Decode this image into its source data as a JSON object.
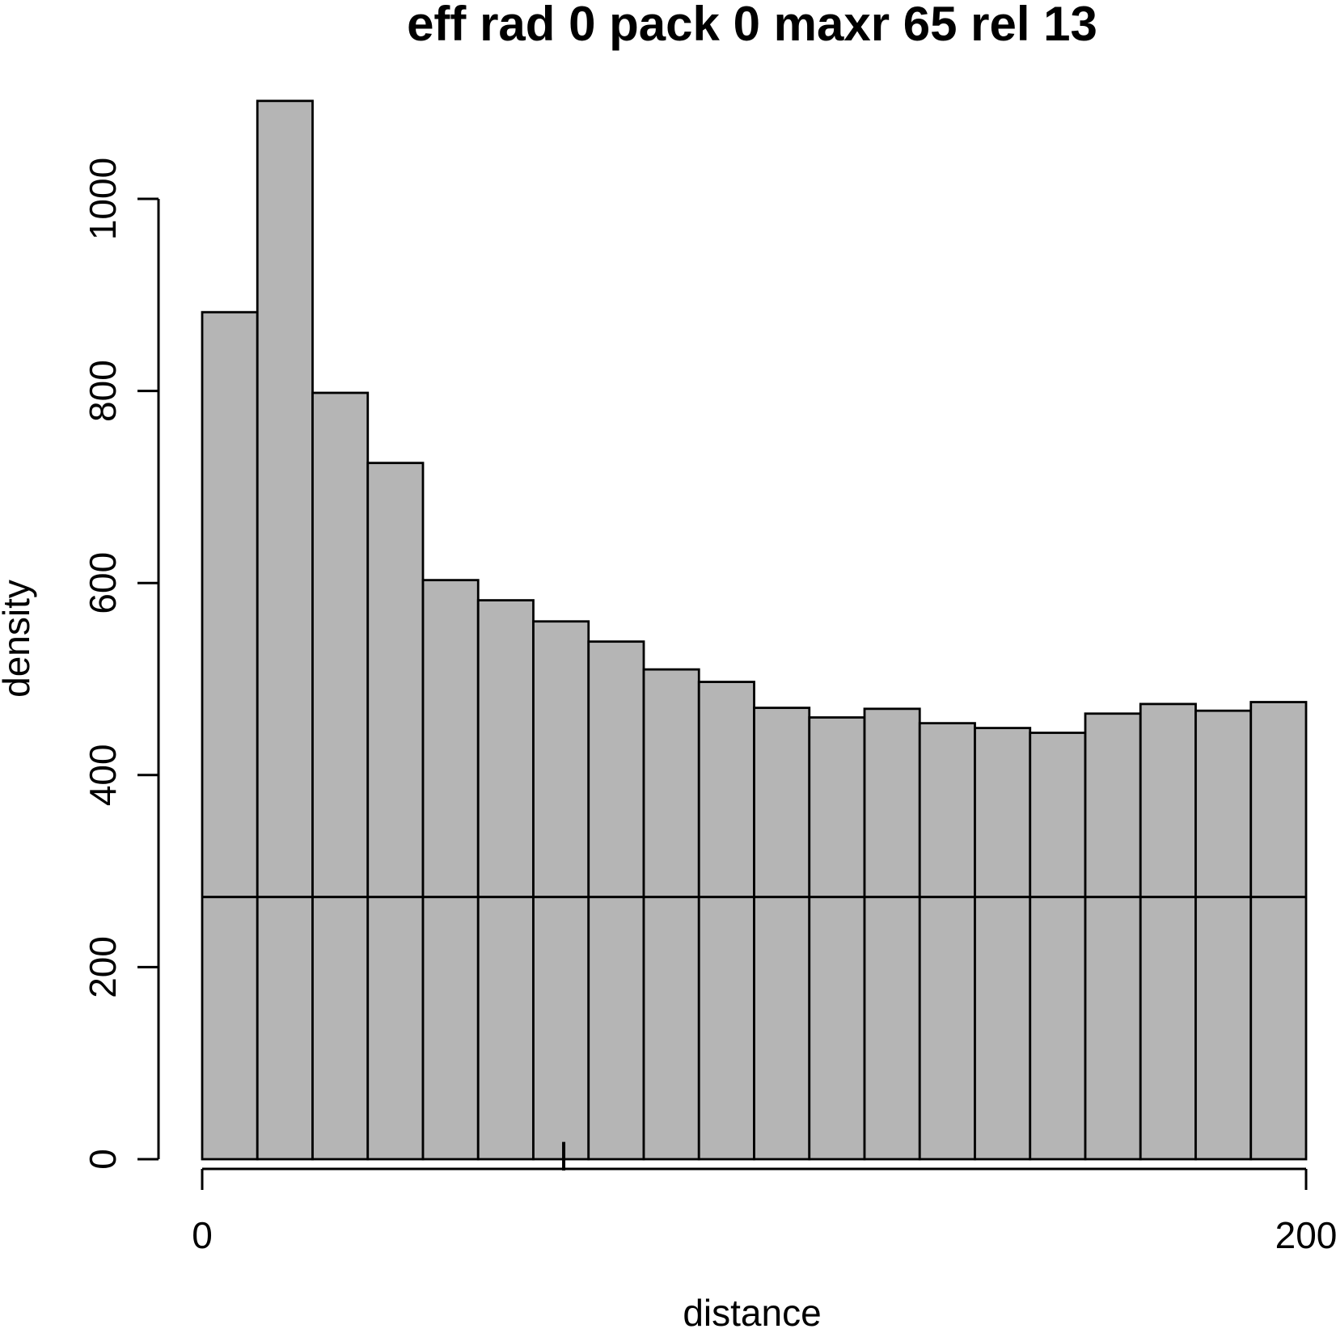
{
  "chart_data": {
    "type": "bar",
    "subtype": "histogram",
    "title": "eff rad 0 pack 0 maxr 65 rel 13",
    "xlabel": "distance",
    "ylabel": "density",
    "xlim": [
      0,
      200
    ],
    "ylim": [
      0,
      1160
    ],
    "x_ticks": [
      0,
      200
    ],
    "y_ticks": [
      0,
      200,
      400,
      600,
      800,
      1000
    ],
    "bin_width": 10,
    "values": [
      882,
      1102,
      798,
      725,
      603,
      582,
      560,
      539,
      510,
      497,
      470,
      460,
      469,
      454,
      449,
      444,
      464,
      474,
      467,
      476
    ],
    "reference_line_y": 273,
    "marker_x": 65.5,
    "grid": false,
    "legend": false,
    "colors": {
      "bar_fill": "#b5b5b5",
      "bar_stroke": "#000000",
      "axis_color": "#000000",
      "reference_line_color": "#000000",
      "background": "#ffffff"
    }
  }
}
